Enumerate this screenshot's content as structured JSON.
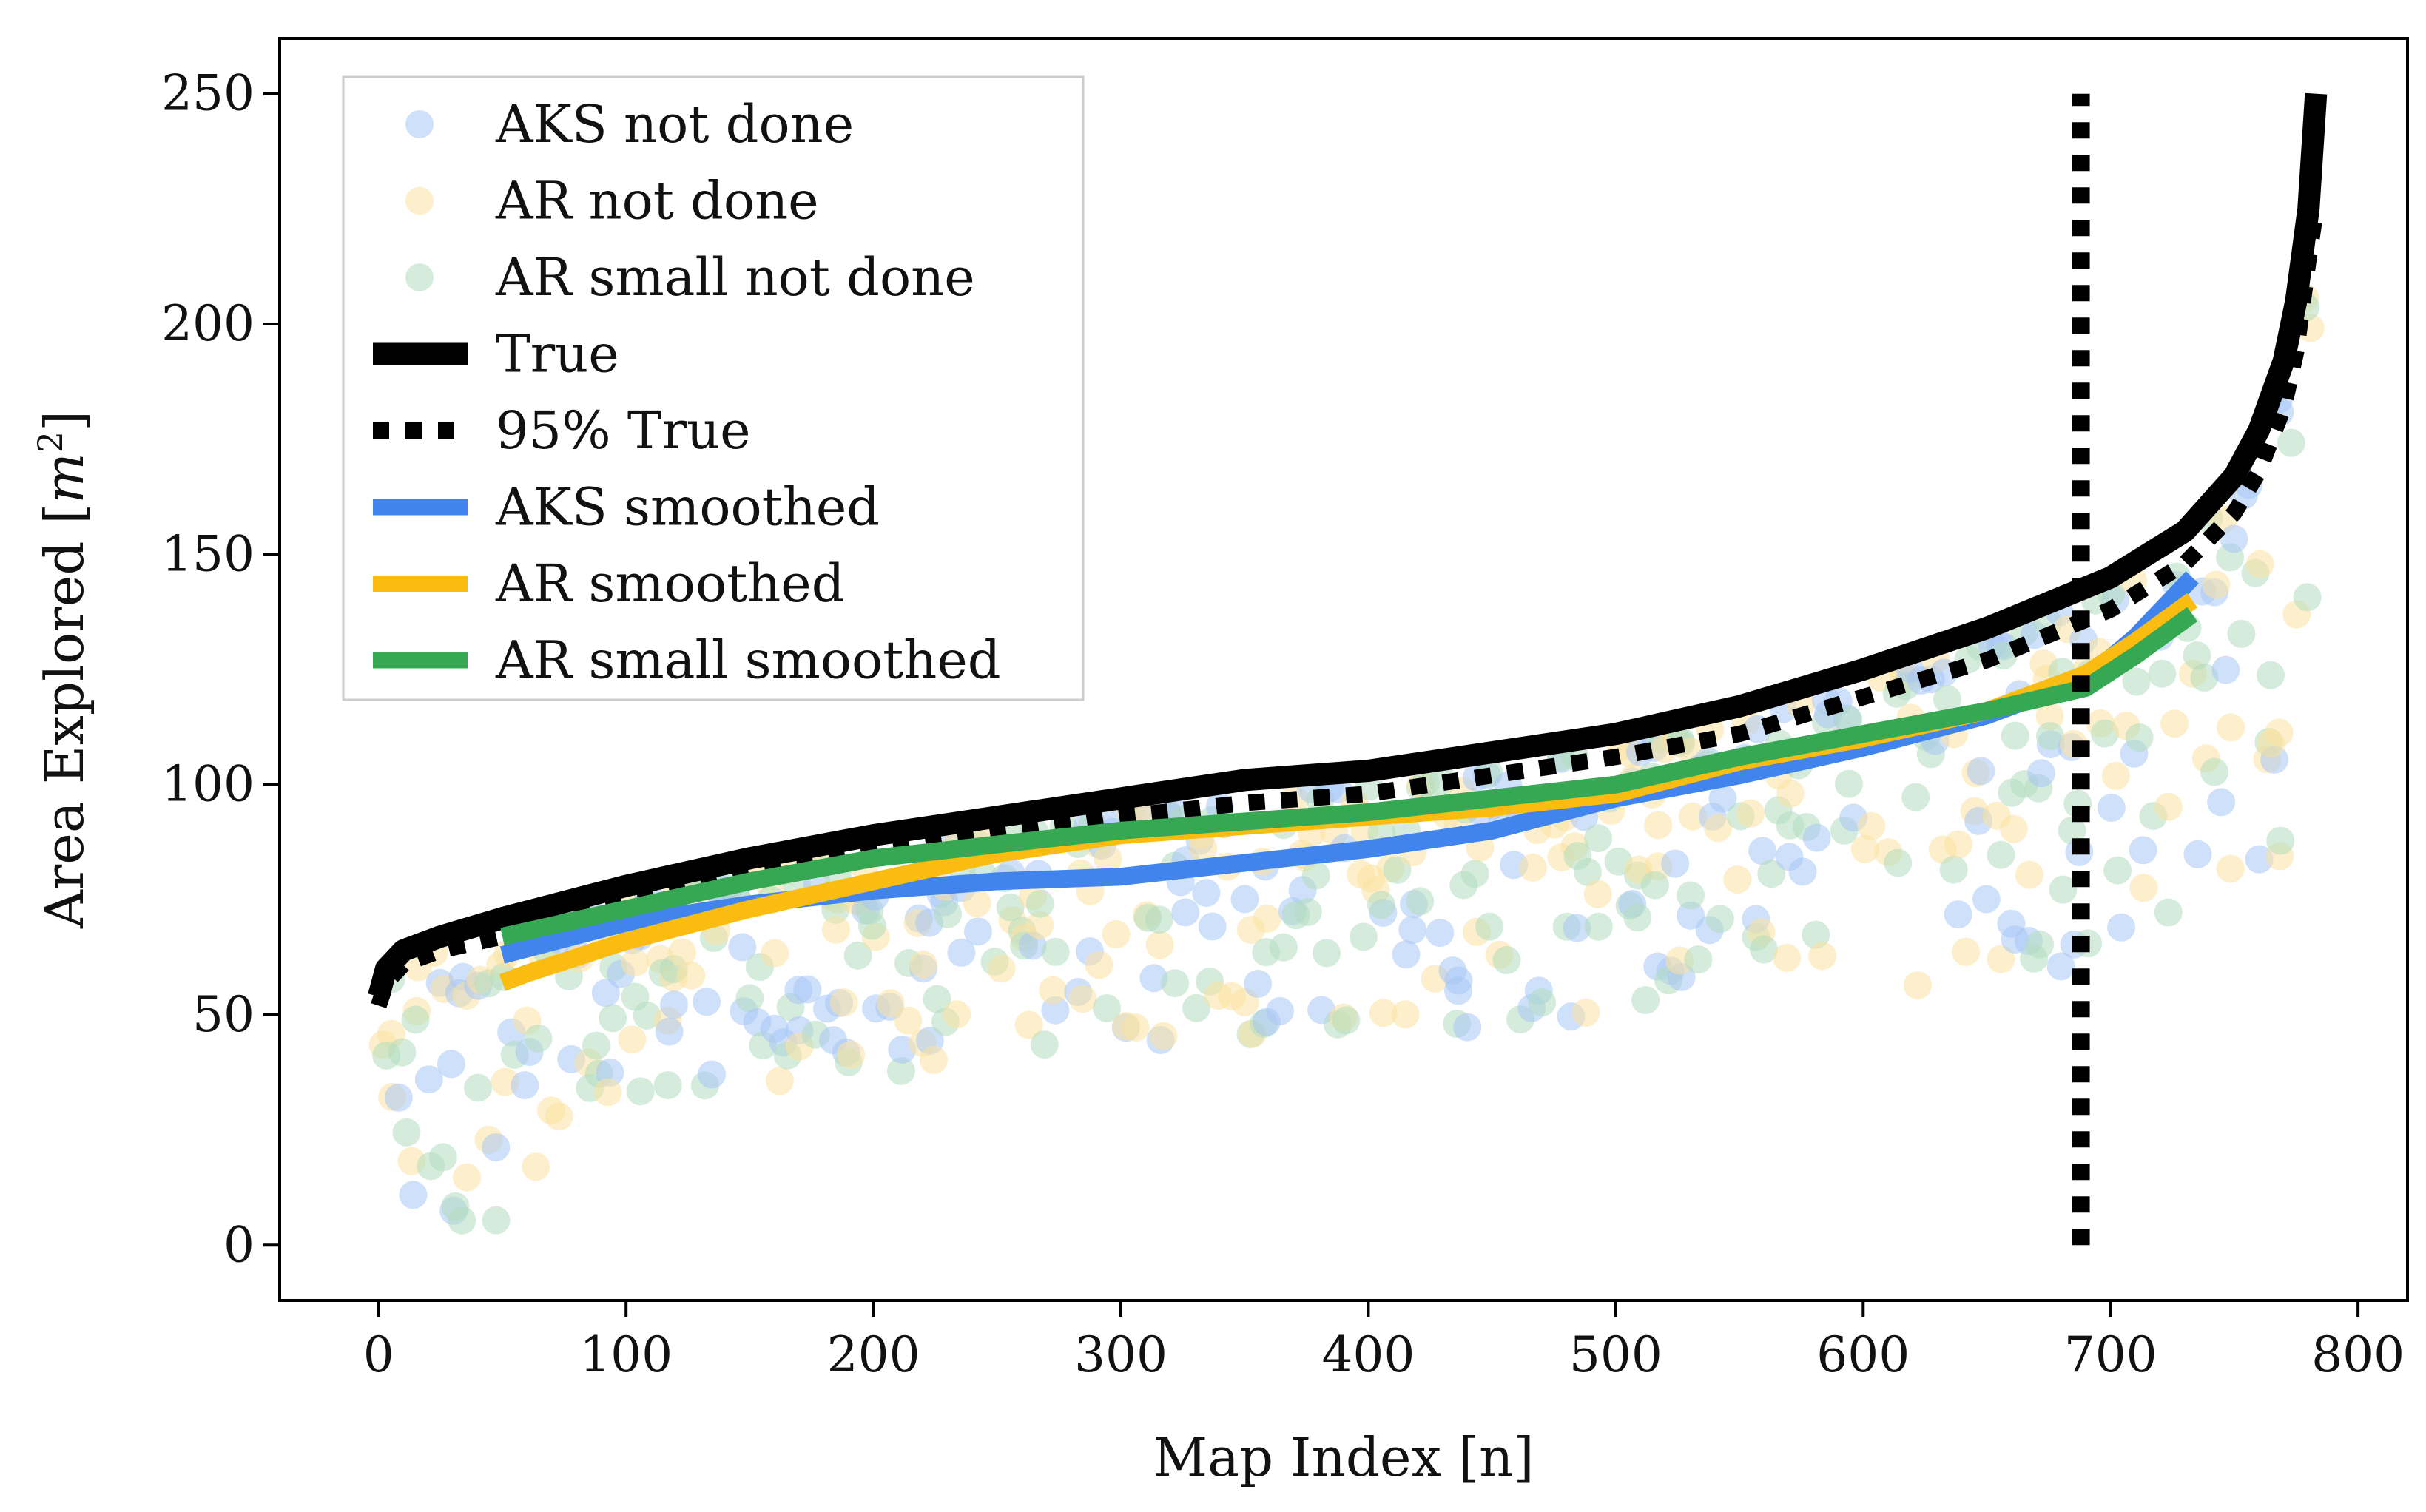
{
  "chart_data": {
    "type": "scatter",
    "title": "",
    "xlabel": "Map Index [n]",
    "ylabel_text": "Area Explored [",
    "ylabel_var": "m",
    "ylabel_exp": "2",
    "ylabel_close": "]",
    "xlim": [
      -40,
      820
    ],
    "ylim": [
      -12,
      262
    ],
    "xticks": [
      0,
      100,
      200,
      300,
      400,
      500,
      600,
      700,
      800
    ],
    "yticks": [
      0,
      50,
      100,
      150,
      200,
      250
    ],
    "xtick_labels": [
      "0",
      "100",
      "200",
      "300",
      "400",
      "500",
      "600",
      "700",
      "800"
    ],
    "ytick_labels": [
      "0",
      "50",
      "100",
      "150",
      "200",
      "250"
    ],
    "legend_position": "upper-left",
    "vline": {
      "x": 688,
      "y_range": [
        0,
        250
      ]
    },
    "series": [
      {
        "name": "AKS not done",
        "kind": "scatter",
        "color": "#a8c6f5"
      },
      {
        "name": "AR not done",
        "kind": "scatter",
        "color": "#fbe1a0"
      },
      {
        "name": "AR small not done",
        "kind": "scatter",
        "color": "#b3dcbf"
      },
      {
        "name": "True",
        "kind": "line",
        "style": "solid",
        "color": "#000000",
        "x": [
          0,
          3,
          10,
          25,
          50,
          100,
          150,
          200,
          250,
          300,
          350,
          400,
          450,
          500,
          550,
          600,
          650,
          700,
          730,
          750,
          760,
          770,
          775,
          780,
          783
        ],
        "y": [
          54,
          60,
          64,
          67,
          71,
          78,
          84,
          89,
          93,
          97,
          101,
          103,
          107,
          111,
          117,
          125,
          134,
          145,
          155,
          167,
          177,
          192,
          205,
          225,
          250
        ]
      },
      {
        "name": "95% True",
        "kind": "line",
        "style": "dotted",
        "color": "#000000",
        "x": [
          0,
          3,
          10,
          25,
          50,
          100,
          150,
          200,
          250,
          300,
          350,
          400,
          450,
          500,
          550,
          600,
          650,
          700,
          730,
          750,
          760,
          770,
          775,
          780,
          783
        ],
        "y": [
          52,
          57,
          61,
          64,
          67,
          74,
          80,
          85,
          89,
          93,
          96,
          98,
          102,
          106,
          111,
          119,
          127,
          138,
          148,
          159,
          168,
          182,
          194,
          214,
          225
        ]
      },
      {
        "name": "AKS smoothed",
        "kind": "line",
        "style": "solid",
        "color": "#4184ee",
        "x": [
          50,
          100,
          150,
          200,
          250,
          300,
          350,
          400,
          450,
          500,
          550,
          600,
          650,
          690,
          710,
          733
        ],
        "y": [
          63,
          70,
          74,
          77,
          79,
          80,
          83,
          86,
          90,
          97,
          102,
          108,
          115,
          123,
          132,
          145
        ]
      },
      {
        "name": "AR smoothed",
        "kind": "line",
        "style": "solid",
        "color": "#fbbc12",
        "x": [
          50,
          60,
          100,
          150,
          200,
          250,
          300,
          350,
          400,
          450,
          500,
          550,
          600,
          650,
          690,
          710,
          733
        ],
        "y": [
          57,
          59,
          66,
          73,
          79,
          85,
          89,
          91,
          93,
          95,
          98,
          105,
          110,
          116,
          124,
          131,
          140
        ]
      },
      {
        "name": "AR small smoothed",
        "kind": "line",
        "style": "solid",
        "color": "#36a853",
        "x": [
          50,
          100,
          150,
          200,
          250,
          300,
          350,
          400,
          450,
          500,
          550,
          600,
          650,
          690,
          710,
          733
        ],
        "y": [
          67,
          73,
          79,
          84,
          87,
          90,
          92,
          94,
          97,
          100,
          106,
          111,
          116,
          121,
          128,
          137
        ]
      }
    ]
  }
}
